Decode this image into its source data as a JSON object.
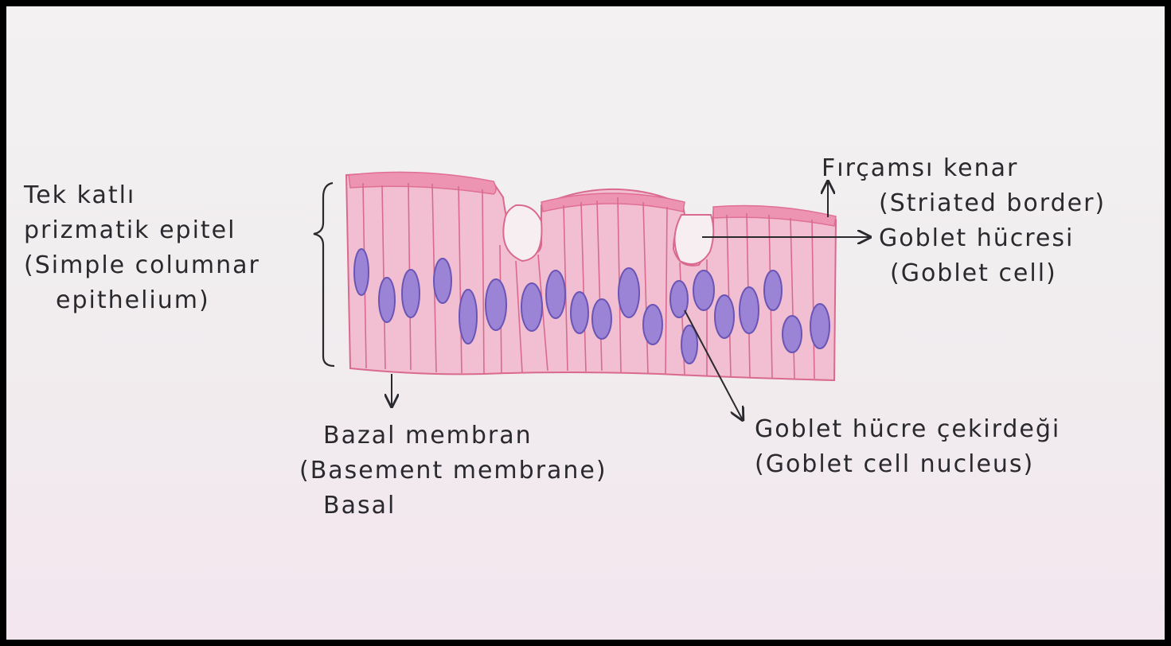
{
  "labels": {
    "epithelium": [
      "Tek katlı",
      "prizmatik epitel",
      "(Simple columnar",
      "epithelium)"
    ],
    "striated_border": [
      "Fırçamsı kenar",
      "(Striated border)"
    ],
    "goblet_cell": [
      "Goblet hücresi",
      "(Goblet cell)"
    ],
    "goblet_nucleus": [
      "Goblet hücre çekirdeği",
      "(Goblet cell nucleus)"
    ],
    "basal_membrane": [
      "Bazal membran",
      "(Basement membrane)",
      "Basal"
    ]
  },
  "colors": {
    "tissue_fill": "#f2bfd2",
    "cell_wall": "#d96a8e",
    "apical_border": "#e87fa0",
    "nucleus_fill": "#9b84d6",
    "nucleus_edge": "#6a55b5",
    "ink": "#2a2a2e"
  }
}
